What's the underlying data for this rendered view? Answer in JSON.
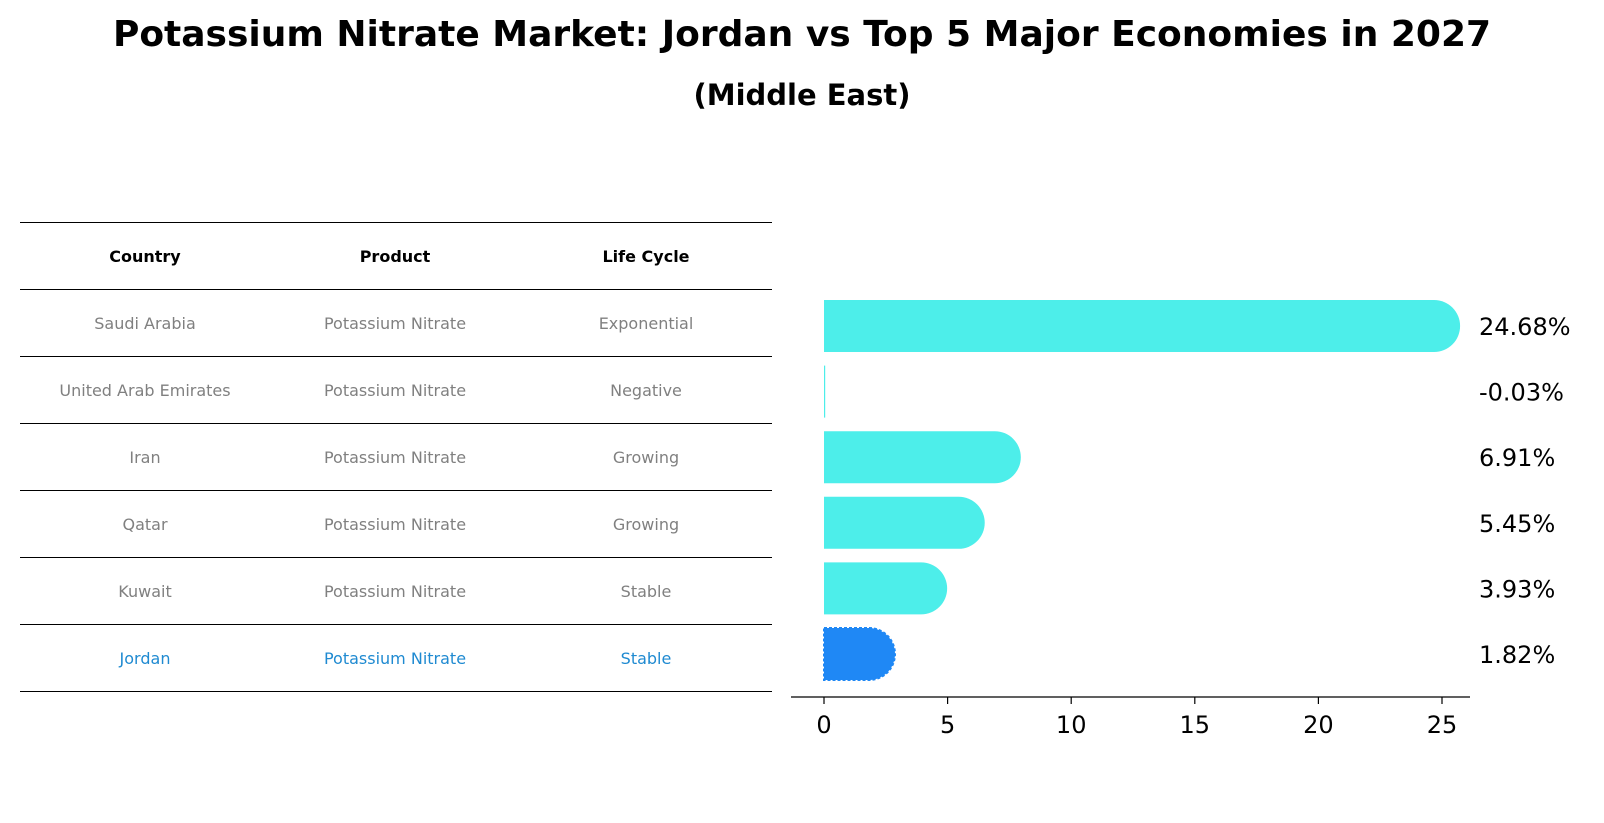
{
  "title": "Potassium Nitrate Market: Jordan vs Top 5 Major Economies in 2027",
  "subtitle": "(Middle East)",
  "table": {
    "headers": [
      "Country",
      "Product",
      "Life Cycle"
    ],
    "rows": [
      [
        "Saudi Arabia",
        "Potassium Nitrate",
        "Exponential"
      ],
      [
        "United Arab Emirates",
        "Potassium Nitrate",
        "Negative"
      ],
      [
        "Iran",
        "Potassium Nitrate",
        "Growing"
      ],
      [
        "Qatar",
        "Potassium Nitrate",
        "Growing"
      ],
      [
        "Kuwait",
        "Potassium Nitrate",
        "Stable"
      ],
      [
        "Jordan",
        "Potassium Nitrate",
        "Stable"
      ]
    ]
  },
  "colors": {
    "bar": "#4deeea",
    "highlight_bar": "#1f88f5",
    "highlight_text": "#1f8ad1",
    "muted_text": "#808080"
  },
  "chart_data": {
    "type": "bar",
    "orientation": "horizontal",
    "categories": [
      "Saudi Arabia",
      "United Arab Emirates",
      "Iran",
      "Qatar",
      "Kuwait",
      "Jordan"
    ],
    "values": [
      24.68,
      -0.03,
      6.91,
      5.45,
      3.93,
      1.82
    ],
    "labels": [
      "24.68%",
      "-0.03%",
      "6.91%",
      "5.45%",
      "3.93%",
      "1.82%"
    ],
    "highlight": "Jordan",
    "xlim": [
      -1.3,
      26
    ],
    "xticks": [
      0,
      5,
      10,
      15,
      20,
      25
    ],
    "xtick_labels": [
      "0",
      "5",
      "10",
      "15",
      "20",
      "25"
    ],
    "title": "Potassium Nitrate Market: Jordan vs Top 5 Major Economies in 2027",
    "xlabel": "",
    "ylabel": ""
  }
}
